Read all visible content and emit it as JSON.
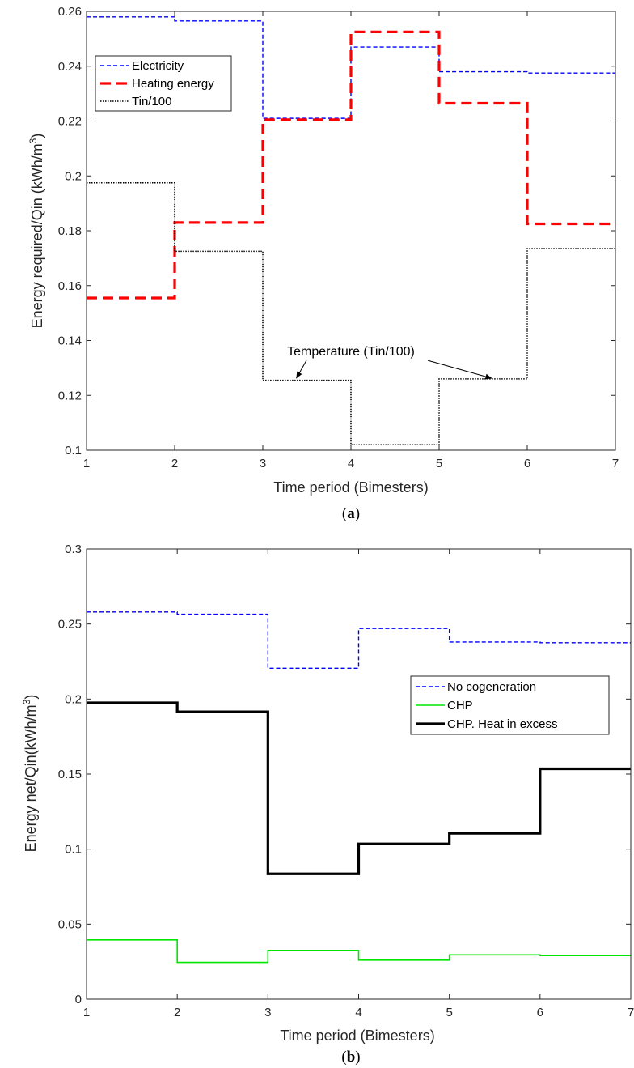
{
  "chart_data": [
    {
      "type": "line",
      "step": true,
      "xlabel": "Time period (Bimesters)",
      "ylabel": "Energy required/Qin (kWh/m",
      "ylabel_sup": "3",
      "ylabel_end": ")",
      "caption": "a",
      "xlim": [
        1,
        7
      ],
      "ylim": [
        0.1,
        0.26
      ],
      "xticks": [
        "1",
        "2",
        "3",
        "4",
        "5",
        "6",
        "7"
      ],
      "yticks": [
        "0.1",
        "0.12",
        "0.14",
        "0.16",
        "0.18",
        "0.2",
        "0.22",
        "0.24",
        "0.26"
      ],
      "grid": false,
      "legend_position": "top-left",
      "series": [
        {
          "name": "Electricity",
          "color": "#0000ff",
          "style": "dashed",
          "x": [
            1,
            2,
            3,
            4,
            5,
            6,
            7
          ],
          "y": [
            0.258,
            0.2565,
            0.221,
            0.247,
            0.238,
            0.2375,
            0.2375
          ]
        },
        {
          "name": "Heating energy",
          "color": "#ff0000",
          "style": "bold-dashed",
          "x": [
            1,
            2,
            3,
            4,
            5,
            6,
            7
          ],
          "y": [
            0.1555,
            0.183,
            0.2205,
            0.2525,
            0.2265,
            0.1825,
            0.1825
          ]
        },
        {
          "name": "Tin/100",
          "color": "#000000",
          "style": "dotted",
          "x": [
            1,
            2,
            3,
            4,
            5,
            6,
            7
          ],
          "y": [
            0.1975,
            0.1725,
            0.1255,
            0.102,
            0.126,
            0.1735,
            0.1735
          ]
        }
      ],
      "annotations": [
        {
          "text": "Temperature (Tin/100)",
          "x": 4.0,
          "y": 0.1345,
          "arrows": [
            {
              "x": 3.38,
              "y": 0.1262
            },
            {
              "x": 5.6,
              "y": 0.1262
            }
          ]
        }
      ]
    },
    {
      "type": "line",
      "step": true,
      "xlabel": "Time period (Bimesters)",
      "ylabel": "Energy net/Qin(kWh/m",
      "ylabel_sup": "3",
      "ylabel_end": ")",
      "caption": "b",
      "xlim": [
        1,
        7
      ],
      "ylim": [
        0,
        0.3
      ],
      "xticks": [
        "1",
        "2",
        "3",
        "4",
        "5",
        "6",
        "7"
      ],
      "yticks": [
        "0",
        "0.05",
        "0.1",
        "0.15",
        "0.2",
        "0.25",
        "0.3"
      ],
      "grid": false,
      "legend_position": "right",
      "series": [
        {
          "name": "No cogeneration",
          "color": "#0000ff",
          "style": "dashed",
          "x": [
            1,
            2,
            3,
            4,
            5,
            6,
            7
          ],
          "y": [
            0.258,
            0.2565,
            0.2205,
            0.247,
            0.238,
            0.2375,
            0.2375
          ]
        },
        {
          "name": "CHP",
          "color": "#00e600",
          "style": "solid",
          "x": [
            1,
            2,
            3,
            4,
            5,
            6,
            7
          ],
          "y": [
            0.0395,
            0.0245,
            0.0325,
            0.026,
            0.0295,
            0.029,
            0.029
          ]
        },
        {
          "name": "CHP. Heat in excess",
          "color": "#000000",
          "style": "bold",
          "x": [
            1,
            2,
            3,
            4,
            5,
            6,
            7
          ],
          "y": [
            0.1975,
            0.1915,
            0.0835,
            0.1035,
            0.1105,
            0.1535,
            0.1535
          ]
        }
      ]
    }
  ]
}
